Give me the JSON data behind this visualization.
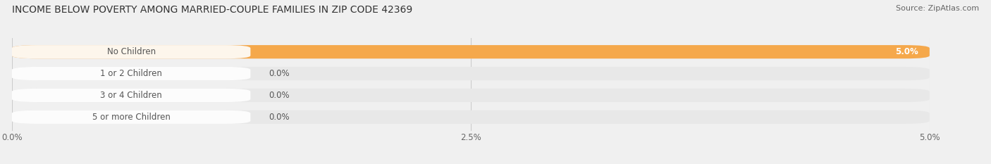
{
  "title": "INCOME BELOW POVERTY AMONG MARRIED-COUPLE FAMILIES IN ZIP CODE 42369",
  "source": "Source: ZipAtlas.com",
  "categories": [
    "No Children",
    "1 or 2 Children",
    "3 or 4 Children",
    "5 or more Children"
  ],
  "values": [
    5.0,
    0.0,
    0.0,
    0.0
  ],
  "bar_colors": [
    "#F5A84B",
    "#EE9090",
    "#A8BAE0",
    "#C4A8D4"
  ],
  "bar_bg_color": "#E8E8E8",
  "xlim": [
    0,
    5.0
  ],
  "xticks": [
    0.0,
    2.5,
    5.0
  ],
  "xtick_labels": [
    "0.0%",
    "2.5%",
    "5.0%"
  ],
  "value_labels": [
    "5.0%",
    "0.0%",
    "0.0%",
    "0.0%"
  ],
  "title_fontsize": 10,
  "label_fontsize": 8.5,
  "tick_fontsize": 8.5,
  "source_fontsize": 8,
  "background_color": "#f0f0f0",
  "white_color": "#ffffff",
  "text_color": "#555555",
  "grid_color": "#cccccc"
}
